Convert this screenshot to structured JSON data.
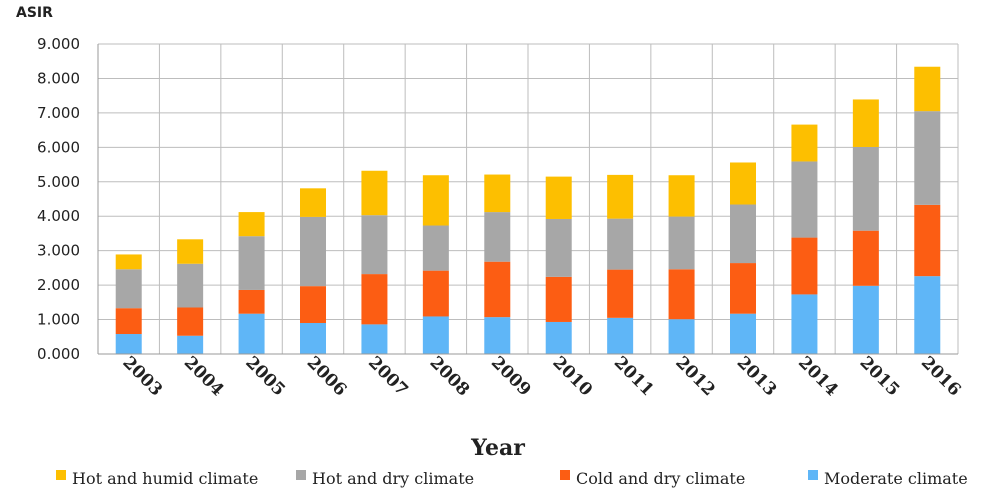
{
  "chart_data": {
    "type": "bar",
    "stacked": true,
    "title": "",
    "ylabel": "ASIR",
    "xlabel": "Year",
    "ylim": [
      0,
      9
    ],
    "yticks": [
      "0.000",
      "1.000",
      "2.000",
      "3.000",
      "4.000",
      "5.000",
      "6.000",
      "7.000",
      "8.000",
      "9.000"
    ],
    "grid": true,
    "legend_position": "bottom",
    "categories": [
      "2003",
      "2004",
      "2005",
      "2006",
      "2007",
      "2008",
      "2009",
      "2010",
      "2011",
      "2012",
      "2013",
      "2014",
      "2015",
      "2016"
    ],
    "series": [
      {
        "name": "Moderate climate",
        "color": "#5fb6f7",
        "values": [
          0.58,
          0.53,
          1.17,
          0.9,
          0.86,
          1.09,
          1.07,
          0.93,
          1.05,
          1.01,
          1.17,
          1.73,
          1.98,
          2.26
        ]
      },
      {
        "name": "Cold and dry climate",
        "color": "#fc5d13",
        "values": [
          0.75,
          0.82,
          0.69,
          1.07,
          1.46,
          1.33,
          1.61,
          1.31,
          1.4,
          1.45,
          1.47,
          1.65,
          1.6,
          2.07
        ]
      },
      {
        "name": "Hot and dry climate",
        "color": "#a7a7a7",
        "values": [
          1.13,
          1.27,
          1.56,
          2.01,
          1.71,
          1.31,
          1.44,
          1.68,
          1.48,
          1.53,
          1.7,
          2.21,
          2.43,
          2.72
        ]
      },
      {
        "name": "Hot and humid climate",
        "color": "#fdbf00",
        "values": [
          0.43,
          0.71,
          0.7,
          0.83,
          1.29,
          1.46,
          1.09,
          1.23,
          1.27,
          1.2,
          1.22,
          1.07,
          1.38,
          1.29
        ]
      }
    ],
    "legend_order": [
      "Hot and humid climate",
      "Hot and dry climate",
      "Cold and dry climate",
      "Moderate climate"
    ]
  }
}
